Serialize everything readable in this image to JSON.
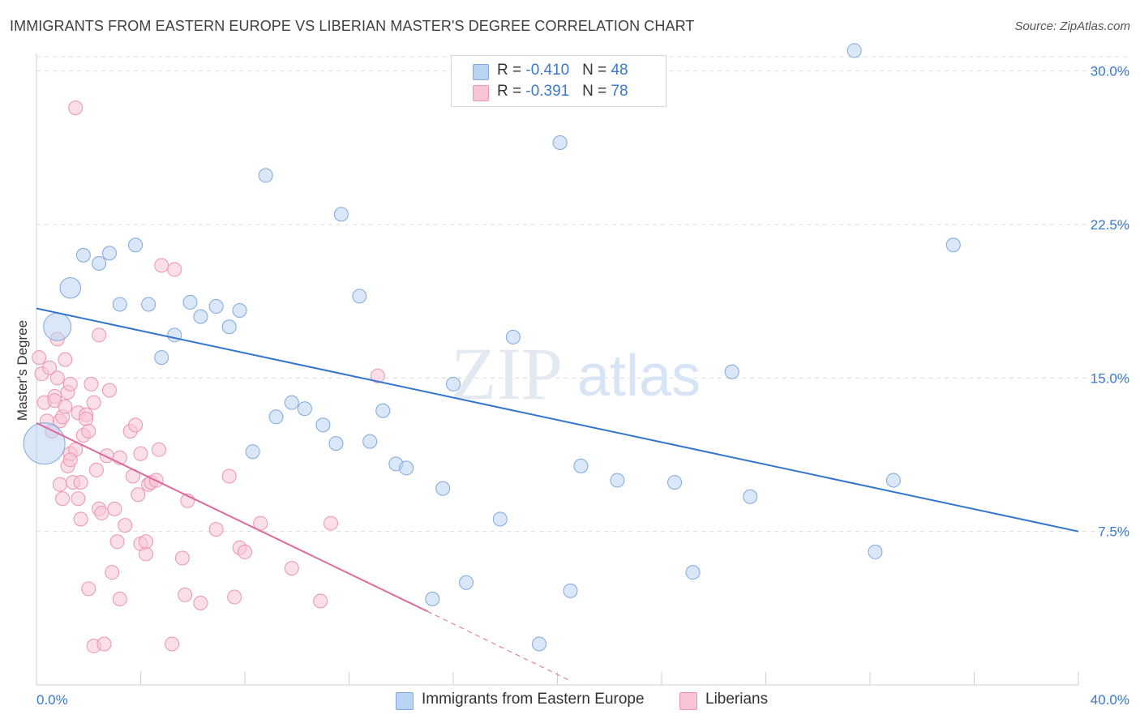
{
  "title": "IMMIGRANTS FROM EASTERN EUROPE VS LIBERIAN MASTER'S DEGREE CORRELATION CHART",
  "source": "Source: ZipAtlas.com",
  "watermark": {
    "zip": "ZIP",
    "atlas": "atlas"
  },
  "legend_top": [
    {
      "r_label": "R = ",
      "r_value": "-0.410",
      "n_label": "N = ",
      "n_value": "48"
    },
    {
      "r_label": "R = ",
      "r_value": "-0.391",
      "n_label": "N = ",
      "n_value": "78"
    }
  ],
  "colors": {
    "blue_fill": "#b9d3f3",
    "blue_stroke": "#7fa8de",
    "blue_line": "#3274d0",
    "pink_fill": "#f8c5d5",
    "pink_stroke": "#ec94b0",
    "pink_line": "#e06a97",
    "axis_text": "#3a78c9",
    "grid": "#dcdcdc"
  },
  "chart_data": {
    "type": "scatter",
    "title": "IMMIGRANTS FROM EASTERN EUROPE VS LIBERIAN MASTER'S DEGREE CORRELATION CHART",
    "xlabel": "",
    "ylabel": "Master's Degree",
    "xlim": [
      0,
      40
    ],
    "ylim": [
      0,
      30.7
    ],
    "x_tick_labels": [
      "0.0%",
      "40.0%"
    ],
    "y_ticks": [
      7.5,
      15.0,
      22.5,
      30.0
    ],
    "y_tick_labels": [
      "7.5%",
      "15.0%",
      "22.5%",
      "30.0%"
    ],
    "grid": "horizontal dashed",
    "legend_position": "top-center",
    "series": [
      {
        "name": "Immigrants from Eastern Europe",
        "color": "blue",
        "r": -0.41,
        "n": 48,
        "trend": {
          "x": [
            0,
            40
          ],
          "y": [
            18.4,
            7.5
          ],
          "style": "solid"
        },
        "points": [
          [
            0.3,
            11.8,
            3
          ],
          [
            0.8,
            17.5,
            2
          ],
          [
            1.3,
            19.4,
            1.5
          ],
          [
            1.8,
            21.0,
            1
          ],
          [
            2.4,
            20.6,
            1
          ],
          [
            2.8,
            21.1,
            1
          ],
          [
            3.2,
            18.6,
            1
          ],
          [
            3.8,
            21.5,
            1
          ],
          [
            4.3,
            18.6,
            1
          ],
          [
            4.8,
            16.0,
            1
          ],
          [
            5.3,
            17.1,
            1
          ],
          [
            5.9,
            18.7,
            1
          ],
          [
            6.3,
            18.0,
            1
          ],
          [
            6.9,
            18.5,
            1
          ],
          [
            7.4,
            17.5,
            1
          ],
          [
            7.8,
            18.3,
            1
          ],
          [
            8.3,
            11.4,
            1
          ],
          [
            8.8,
            24.9,
            1
          ],
          [
            9.2,
            13.1,
            1
          ],
          [
            9.8,
            13.8,
            1
          ],
          [
            10.3,
            13.5,
            1
          ],
          [
            11.0,
            12.7,
            1
          ],
          [
            11.5,
            11.8,
            1
          ],
          [
            11.7,
            23.0,
            1
          ],
          [
            12.4,
            19.0,
            1
          ],
          [
            12.8,
            11.9,
            1
          ],
          [
            13.3,
            13.4,
            1
          ],
          [
            13.8,
            10.8,
            1
          ],
          [
            14.2,
            10.6,
            1
          ],
          [
            15.2,
            4.2,
            1
          ],
          [
            15.6,
            9.6,
            1
          ],
          [
            16.0,
            14.7,
            1
          ],
          [
            16.5,
            5.0,
            1
          ],
          [
            17.8,
            8.1,
            1
          ],
          [
            18.3,
            17.0,
            1
          ],
          [
            19.3,
            2.0,
            1
          ],
          [
            20.1,
            26.5,
            1
          ],
          [
            20.5,
            4.6,
            1
          ],
          [
            20.9,
            10.7,
            1
          ],
          [
            22.3,
            10.0,
            1
          ],
          [
            24.5,
            9.9,
            1
          ],
          [
            25.2,
            5.5,
            1
          ],
          [
            26.7,
            15.3,
            1
          ],
          [
            27.4,
            9.2,
            1
          ],
          [
            32.2,
            6.5,
            1
          ],
          [
            32.9,
            10.0,
            1
          ],
          [
            35.2,
            21.5,
            1
          ],
          [
            31.4,
            31.0,
            1
          ]
        ]
      },
      {
        "name": "Liberians",
        "color": "pink",
        "r": -0.391,
        "n": 78,
        "trend": {
          "x": [
            0,
            15
          ],
          "y": [
            12.8,
            3.6
          ],
          "style": "solid"
        },
        "trend_extension": {
          "x": [
            15,
            20.5
          ],
          "y": [
            3.6,
            0.2
          ],
          "style": "dashed"
        },
        "points": [
          [
            0.1,
            16.0,
            1
          ],
          [
            0.2,
            15.2,
            1
          ],
          [
            0.3,
            13.8,
            1
          ],
          [
            0.4,
            12.9,
            1
          ],
          [
            0.5,
            15.5,
            1
          ],
          [
            0.6,
            12.4,
            1
          ],
          [
            0.7,
            14.1,
            1
          ],
          [
            0.7,
            13.9,
            1
          ],
          [
            0.8,
            15.0,
            1
          ],
          [
            0.8,
            16.9,
            1
          ],
          [
            0.9,
            12.9,
            1
          ],
          [
            0.9,
            9.8,
            1
          ],
          [
            1.0,
            13.1,
            1
          ],
          [
            1.0,
            9.1,
            1
          ],
          [
            1.1,
            13.6,
            1
          ],
          [
            1.1,
            15.9,
            1
          ],
          [
            1.2,
            10.7,
            1
          ],
          [
            1.2,
            14.3,
            1
          ],
          [
            1.3,
            11.3,
            1
          ],
          [
            1.3,
            14.7,
            1
          ],
          [
            1.4,
            9.9,
            1
          ],
          [
            1.5,
            11.5,
            1
          ],
          [
            1.6,
            13.3,
            1
          ],
          [
            1.6,
            9.1,
            1
          ],
          [
            1.7,
            8.1,
            1
          ],
          [
            1.7,
            9.9,
            1
          ],
          [
            1.8,
            12.2,
            1
          ],
          [
            1.9,
            13.2,
            1
          ],
          [
            1.9,
            13.0,
            1
          ],
          [
            2.0,
            12.4,
            1
          ],
          [
            2.0,
            4.7,
            1
          ],
          [
            2.1,
            14.7,
            1
          ],
          [
            2.2,
            1.9,
            1
          ],
          [
            2.2,
            13.8,
            1
          ],
          [
            2.3,
            10.5,
            1
          ],
          [
            2.4,
            8.6,
            1
          ],
          [
            2.4,
            17.1,
            1
          ],
          [
            2.5,
            8.4,
            1
          ],
          [
            2.6,
            2.0,
            1
          ],
          [
            2.7,
            11.2,
            1
          ],
          [
            2.8,
            14.4,
            1
          ],
          [
            2.9,
            5.5,
            1
          ],
          [
            3.0,
            8.6,
            1
          ],
          [
            3.1,
            7.0,
            1
          ],
          [
            3.2,
            4.2,
            1
          ],
          [
            3.2,
            11.1,
            1
          ],
          [
            3.4,
            7.8,
            1
          ],
          [
            3.6,
            12.4,
            1
          ],
          [
            3.7,
            10.2,
            1
          ],
          [
            3.8,
            12.7,
            1
          ],
          [
            3.9,
            9.3,
            1
          ],
          [
            4.0,
            6.9,
            1
          ],
          [
            4.0,
            11.3,
            1
          ],
          [
            4.2,
            6.4,
            1
          ],
          [
            4.2,
            7.0,
            1
          ],
          [
            4.3,
            9.8,
            1
          ],
          [
            4.4,
            9.9,
            1
          ],
          [
            4.6,
            10.0,
            1
          ],
          [
            4.7,
            11.5,
            1
          ],
          [
            4.8,
            20.5,
            1
          ],
          [
            5.2,
            2.0,
            1
          ],
          [
            5.3,
            20.3,
            1
          ],
          [
            5.6,
            6.2,
            1
          ],
          [
            5.7,
            4.4,
            1
          ],
          [
            5.8,
            9.0,
            1
          ],
          [
            6.3,
            4.0,
            1
          ],
          [
            6.9,
            7.6,
            1
          ],
          [
            7.4,
            10.2,
            1
          ],
          [
            7.6,
            4.3,
            1
          ],
          [
            7.8,
            6.7,
            1
          ],
          [
            8.0,
            6.5,
            1
          ],
          [
            8.6,
            7.9,
            1
          ],
          [
            9.8,
            5.7,
            1
          ],
          [
            10.9,
            4.1,
            1
          ],
          [
            11.3,
            7.9,
            1
          ],
          [
            13.1,
            15.1,
            1
          ],
          [
            1.5,
            28.2,
            1
          ],
          [
            1.3,
            11.0,
            1
          ]
        ]
      }
    ]
  },
  "bottom_legend": [
    {
      "label": "Immigrants from Eastern Europe"
    },
    {
      "label": "Liberians"
    }
  ]
}
